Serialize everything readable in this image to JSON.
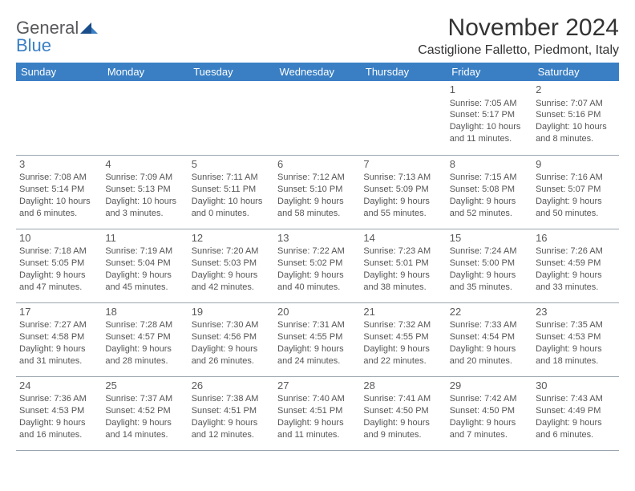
{
  "logo": {
    "word1": "General",
    "word2": "Blue"
  },
  "title": "November 2024",
  "location": "Castiglione Falletto, Piedmont, Italy",
  "colors": {
    "header_bg": "#3a7fc4",
    "header_text": "#ffffff",
    "border": "#9aa5af",
    "text": "#555555",
    "logo_gray": "#58595b",
    "logo_blue": "#3a7fc4"
  },
  "daysOfWeek": [
    "Sunday",
    "Monday",
    "Tuesday",
    "Wednesday",
    "Thursday",
    "Friday",
    "Saturday"
  ],
  "weeks": [
    [
      null,
      null,
      null,
      null,
      null,
      {
        "n": "1",
        "sunrise": "7:05 AM",
        "sunset": "5:17 PM",
        "daylight": "10 hours and 11 minutes."
      },
      {
        "n": "2",
        "sunrise": "7:07 AM",
        "sunset": "5:16 PM",
        "daylight": "10 hours and 8 minutes."
      }
    ],
    [
      {
        "n": "3",
        "sunrise": "7:08 AM",
        "sunset": "5:14 PM",
        "daylight": "10 hours and 6 minutes."
      },
      {
        "n": "4",
        "sunrise": "7:09 AM",
        "sunset": "5:13 PM",
        "daylight": "10 hours and 3 minutes."
      },
      {
        "n": "5",
        "sunrise": "7:11 AM",
        "sunset": "5:11 PM",
        "daylight": "10 hours and 0 minutes."
      },
      {
        "n": "6",
        "sunrise": "7:12 AM",
        "sunset": "5:10 PM",
        "daylight": "9 hours and 58 minutes."
      },
      {
        "n": "7",
        "sunrise": "7:13 AM",
        "sunset": "5:09 PM",
        "daylight": "9 hours and 55 minutes."
      },
      {
        "n": "8",
        "sunrise": "7:15 AM",
        "sunset": "5:08 PM",
        "daylight": "9 hours and 52 minutes."
      },
      {
        "n": "9",
        "sunrise": "7:16 AM",
        "sunset": "5:07 PM",
        "daylight": "9 hours and 50 minutes."
      }
    ],
    [
      {
        "n": "10",
        "sunrise": "7:18 AM",
        "sunset": "5:05 PM",
        "daylight": "9 hours and 47 minutes."
      },
      {
        "n": "11",
        "sunrise": "7:19 AM",
        "sunset": "5:04 PM",
        "daylight": "9 hours and 45 minutes."
      },
      {
        "n": "12",
        "sunrise": "7:20 AM",
        "sunset": "5:03 PM",
        "daylight": "9 hours and 42 minutes."
      },
      {
        "n": "13",
        "sunrise": "7:22 AM",
        "sunset": "5:02 PM",
        "daylight": "9 hours and 40 minutes."
      },
      {
        "n": "14",
        "sunrise": "7:23 AM",
        "sunset": "5:01 PM",
        "daylight": "9 hours and 38 minutes."
      },
      {
        "n": "15",
        "sunrise": "7:24 AM",
        "sunset": "5:00 PM",
        "daylight": "9 hours and 35 minutes."
      },
      {
        "n": "16",
        "sunrise": "7:26 AM",
        "sunset": "4:59 PM",
        "daylight": "9 hours and 33 minutes."
      }
    ],
    [
      {
        "n": "17",
        "sunrise": "7:27 AM",
        "sunset": "4:58 PM",
        "daylight": "9 hours and 31 minutes."
      },
      {
        "n": "18",
        "sunrise": "7:28 AM",
        "sunset": "4:57 PM",
        "daylight": "9 hours and 28 minutes."
      },
      {
        "n": "19",
        "sunrise": "7:30 AM",
        "sunset": "4:56 PM",
        "daylight": "9 hours and 26 minutes."
      },
      {
        "n": "20",
        "sunrise": "7:31 AM",
        "sunset": "4:55 PM",
        "daylight": "9 hours and 24 minutes."
      },
      {
        "n": "21",
        "sunrise": "7:32 AM",
        "sunset": "4:55 PM",
        "daylight": "9 hours and 22 minutes."
      },
      {
        "n": "22",
        "sunrise": "7:33 AM",
        "sunset": "4:54 PM",
        "daylight": "9 hours and 20 minutes."
      },
      {
        "n": "23",
        "sunrise": "7:35 AM",
        "sunset": "4:53 PM",
        "daylight": "9 hours and 18 minutes."
      }
    ],
    [
      {
        "n": "24",
        "sunrise": "7:36 AM",
        "sunset": "4:53 PM",
        "daylight": "9 hours and 16 minutes."
      },
      {
        "n": "25",
        "sunrise": "7:37 AM",
        "sunset": "4:52 PM",
        "daylight": "9 hours and 14 minutes."
      },
      {
        "n": "26",
        "sunrise": "7:38 AM",
        "sunset": "4:51 PM",
        "daylight": "9 hours and 12 minutes."
      },
      {
        "n": "27",
        "sunrise": "7:40 AM",
        "sunset": "4:51 PM",
        "daylight": "9 hours and 11 minutes."
      },
      {
        "n": "28",
        "sunrise": "7:41 AM",
        "sunset": "4:50 PM",
        "daylight": "9 hours and 9 minutes."
      },
      {
        "n": "29",
        "sunrise": "7:42 AM",
        "sunset": "4:50 PM",
        "daylight": "9 hours and 7 minutes."
      },
      {
        "n": "30",
        "sunrise": "7:43 AM",
        "sunset": "4:49 PM",
        "daylight": "9 hours and 6 minutes."
      }
    ]
  ],
  "labels": {
    "sunrise": "Sunrise:",
    "sunset": "Sunset:",
    "daylight": "Daylight:"
  }
}
